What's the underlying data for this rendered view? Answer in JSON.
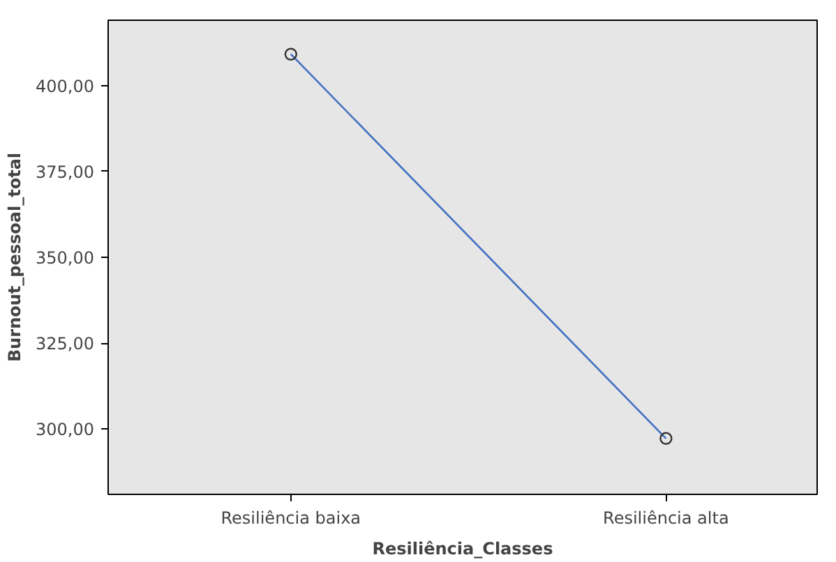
{
  "chart_data": {
    "type": "line",
    "xlabel": "Resiliência_Classes",
    "ylabel": "Burnout_pessoal_total",
    "categories": [
      "Resiliência baixa",
      "Resiliência alta"
    ],
    "series": [
      {
        "color": "#3f6fc0",
        "values": [
          409.2,
          297.2
        ]
      }
    ],
    "ylim": [
      280.9,
      419.1
    ],
    "yticks": [
      {
        "value": 300,
        "label": "300,00"
      },
      {
        "value": 325,
        "label": "325,00"
      },
      {
        "value": 350,
        "label": "350,00"
      },
      {
        "value": 375,
        "label": "375,00"
      },
      {
        "value": 400,
        "label": "400,00"
      }
    ],
    "marker": "circle",
    "grid": false
  }
}
